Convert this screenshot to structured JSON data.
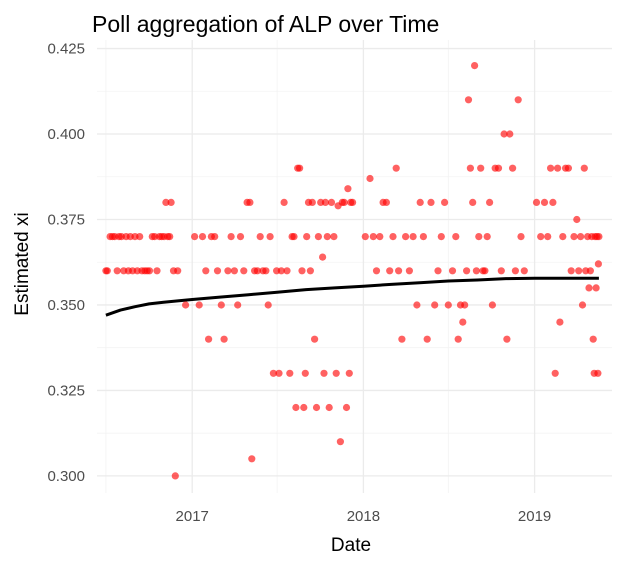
{
  "chart_data": {
    "type": "scatter",
    "title": "Poll aggregation of ALP over Time",
    "xlabel": "Date",
    "ylabel": "Estimated xi",
    "xlim": [
      "2016-06-12",
      "2019-06-15"
    ],
    "ylim": [
      0.295,
      0.4275
    ],
    "x_ticks": [
      {
        "label": "2017",
        "date": "2017-01-01"
      },
      {
        "label": "2018",
        "date": "2018-01-01"
      },
      {
        "label": "2019",
        "date": "2019-01-01"
      }
    ],
    "y_ticks": [
      0.3,
      0.325,
      0.35,
      0.375,
      0.4,
      0.425
    ],
    "y_tick_labels": [
      "0.300",
      "0.325",
      "0.350",
      "0.375",
      "0.400",
      "0.425"
    ],
    "grid": true,
    "point_color": "#ff0000",
    "line_color": "#000000",
    "series": [
      {
        "kind": "points",
        "points": [
          [
            "2016-07-01",
            0.36
          ],
          [
            "2016-07-04",
            0.36
          ],
          [
            "2016-07-10",
            0.37
          ],
          [
            "2016-07-15",
            0.37
          ],
          [
            "2016-07-20",
            0.37
          ],
          [
            "2016-07-25",
            0.36
          ],
          [
            "2016-07-29",
            0.37
          ],
          [
            "2016-08-03",
            0.37
          ],
          [
            "2016-08-08",
            0.36
          ],
          [
            "2016-08-13",
            0.37
          ],
          [
            "2016-08-18",
            0.36
          ],
          [
            "2016-08-22",
            0.37
          ],
          [
            "2016-08-27",
            0.36
          ],
          [
            "2016-09-01",
            0.37
          ],
          [
            "2016-09-06",
            0.36
          ],
          [
            "2016-09-11",
            0.37
          ],
          [
            "2016-09-16",
            0.36
          ],
          [
            "2016-09-22",
            0.36
          ],
          [
            "2016-09-27",
            0.36
          ],
          [
            "2016-10-02",
            0.36
          ],
          [
            "2016-10-08",
            0.37
          ],
          [
            "2016-10-13",
            0.37
          ],
          [
            "2016-10-18",
            0.36
          ],
          [
            "2016-10-23",
            0.37
          ],
          [
            "2016-10-28",
            0.37
          ],
          [
            "2016-11-02",
            0.37
          ],
          [
            "2016-11-06",
            0.38
          ],
          [
            "2016-11-10",
            0.37
          ],
          [
            "2016-11-14",
            0.37
          ],
          [
            "2016-11-17",
            0.38
          ],
          [
            "2016-11-22",
            0.36
          ],
          [
            "2016-11-26",
            0.3
          ],
          [
            "2016-12-01",
            0.36
          ],
          [
            "2016-12-18",
            0.35
          ],
          [
            "2017-01-06",
            0.37
          ],
          [
            "2017-01-16",
            0.35
          ],
          [
            "2017-01-23",
            0.37
          ],
          [
            "2017-01-30",
            0.36
          ],
          [
            "2017-02-05",
            0.34
          ],
          [
            "2017-02-11",
            0.37
          ],
          [
            "2017-02-18",
            0.37
          ],
          [
            "2017-02-24",
            0.36
          ],
          [
            "2017-03-04",
            0.35
          ],
          [
            "2017-03-10",
            0.34
          ],
          [
            "2017-03-18",
            0.36
          ],
          [
            "2017-03-25",
            0.37
          ],
          [
            "2017-04-01",
            0.36
          ],
          [
            "2017-04-08",
            0.35
          ],
          [
            "2017-04-14",
            0.37
          ],
          [
            "2017-04-21",
            0.36
          ],
          [
            "2017-04-28",
            0.38
          ],
          [
            "2017-05-04",
            0.38
          ],
          [
            "2017-05-08",
            0.305
          ],
          [
            "2017-05-14",
            0.36
          ],
          [
            "2017-05-20",
            0.36
          ],
          [
            "2017-05-26",
            0.37
          ],
          [
            "2017-06-01",
            0.36
          ],
          [
            "2017-06-07",
            0.36
          ],
          [
            "2017-06-12",
            0.35
          ],
          [
            "2017-06-16",
            0.37
          ],
          [
            "2017-06-23",
            0.33
          ],
          [
            "2017-06-30",
            0.36
          ],
          [
            "2017-07-05",
            0.33
          ],
          [
            "2017-07-10",
            0.36
          ],
          [
            "2017-07-16",
            0.38
          ],
          [
            "2017-07-22",
            0.36
          ],
          [
            "2017-07-28",
            0.33
          ],
          [
            "2017-08-02",
            0.37
          ],
          [
            "2017-08-06",
            0.37
          ],
          [
            "2017-08-10",
            0.32
          ],
          [
            "2017-08-14",
            0.39
          ],
          [
            "2017-08-18",
            0.39
          ],
          [
            "2017-08-23",
            0.36
          ],
          [
            "2017-08-27",
            0.32
          ],
          [
            "2017-08-30",
            0.33
          ],
          [
            "2017-09-02",
            0.37
          ],
          [
            "2017-09-06",
            0.38
          ],
          [
            "2017-09-10",
            0.36
          ],
          [
            "2017-09-14",
            0.38
          ],
          [
            "2017-09-19",
            0.34
          ],
          [
            "2017-09-23",
            0.32
          ],
          [
            "2017-09-27",
            0.37
          ],
          [
            "2017-10-02",
            0.38
          ],
          [
            "2017-10-06",
            0.364
          ],
          [
            "2017-10-09",
            0.33
          ],
          [
            "2017-10-12",
            0.38
          ],
          [
            "2017-10-16",
            0.37
          ],
          [
            "2017-10-20",
            0.32
          ],
          [
            "2017-10-25",
            0.38
          ],
          [
            "2017-10-30",
            0.37
          ],
          [
            "2017-11-04",
            0.33
          ],
          [
            "2017-11-08",
            0.379
          ],
          [
            "2017-11-13",
            0.31
          ],
          [
            "2017-11-17",
            0.38
          ],
          [
            "2017-11-21",
            0.38
          ],
          [
            "2017-11-26",
            0.32
          ],
          [
            "2017-11-29",
            0.384
          ],
          [
            "2017-12-02",
            0.33
          ],
          [
            "2017-12-05",
            0.38
          ],
          [
            "2017-12-09",
            0.38
          ],
          [
            "2018-01-05",
            0.37
          ],
          [
            "2018-01-15",
            0.387
          ],
          [
            "2018-01-22",
            0.37
          ],
          [
            "2018-01-29",
            0.36
          ],
          [
            "2018-02-05",
            0.37
          ],
          [
            "2018-02-12",
            0.38
          ],
          [
            "2018-02-19",
            0.38
          ],
          [
            "2018-02-26",
            0.36
          ],
          [
            "2018-03-05",
            0.37
          ],
          [
            "2018-03-12",
            0.39
          ],
          [
            "2018-03-17",
            0.36
          ],
          [
            "2018-03-24",
            0.34
          ],
          [
            "2018-04-01",
            0.37
          ],
          [
            "2018-04-09",
            0.36
          ],
          [
            "2018-04-17",
            0.37
          ],
          [
            "2018-04-25",
            0.35
          ],
          [
            "2018-05-02",
            0.38
          ],
          [
            "2018-05-09",
            0.37
          ],
          [
            "2018-05-17",
            0.34
          ],
          [
            "2018-05-25",
            0.38
          ],
          [
            "2018-06-02",
            0.35
          ],
          [
            "2018-06-09",
            0.36
          ],
          [
            "2018-06-16",
            0.37
          ],
          [
            "2018-06-23",
            0.38
          ],
          [
            "2018-07-01",
            0.35
          ],
          [
            "2018-07-10",
            0.36
          ],
          [
            "2018-07-17",
            0.37
          ],
          [
            "2018-07-22",
            0.34
          ],
          [
            "2018-07-27",
            0.35
          ],
          [
            "2018-08-01",
            0.345
          ],
          [
            "2018-08-05",
            0.35
          ],
          [
            "2018-08-09",
            0.36
          ],
          [
            "2018-08-13",
            0.41
          ],
          [
            "2018-08-17",
            0.39
          ],
          [
            "2018-08-22",
            0.38
          ],
          [
            "2018-08-26",
            0.42
          ],
          [
            "2018-08-30",
            0.36
          ],
          [
            "2018-09-04",
            0.37
          ],
          [
            "2018-09-08",
            0.39
          ],
          [
            "2018-09-13",
            0.36
          ],
          [
            "2018-09-17",
            0.36
          ],
          [
            "2018-09-22",
            0.37
          ],
          [
            "2018-09-27",
            0.38
          ],
          [
            "2018-10-03",
            0.35
          ],
          [
            "2018-10-09",
            0.39
          ],
          [
            "2018-10-16",
            0.39
          ],
          [
            "2018-10-22",
            0.36
          ],
          [
            "2018-10-28",
            0.4
          ],
          [
            "2018-11-03",
            0.34
          ],
          [
            "2018-11-09",
            0.4
          ],
          [
            "2018-11-15",
            0.39
          ],
          [
            "2018-11-21",
            0.36
          ],
          [
            "2018-11-27",
            0.41
          ],
          [
            "2018-12-03",
            0.37
          ],
          [
            "2018-12-10",
            0.36
          ],
          [
            "2019-01-05",
            0.38
          ],
          [
            "2019-01-14",
            0.37
          ],
          [
            "2019-01-22",
            0.38
          ],
          [
            "2019-01-29",
            0.37
          ],
          [
            "2019-02-04",
            0.39
          ],
          [
            "2019-02-09",
            0.38
          ],
          [
            "2019-02-14",
            0.33
          ],
          [
            "2019-02-19",
            0.39
          ],
          [
            "2019-02-24",
            0.345
          ],
          [
            "2019-03-02",
            0.37
          ],
          [
            "2019-03-08",
            0.39
          ],
          [
            "2019-03-14",
            0.39
          ],
          [
            "2019-03-20",
            0.36
          ],
          [
            "2019-03-26",
            0.37
          ],
          [
            "2019-04-01",
            0.375
          ],
          [
            "2019-04-05",
            0.36
          ],
          [
            "2019-04-09",
            0.37
          ],
          [
            "2019-04-13",
            0.35
          ],
          [
            "2019-04-17",
            0.39
          ],
          [
            "2019-04-20",
            0.36
          ],
          [
            "2019-04-24",
            0.37
          ],
          [
            "2019-04-27",
            0.355
          ],
          [
            "2019-04-30",
            0.36
          ],
          [
            "2019-05-03",
            0.37
          ],
          [
            "2019-05-06",
            0.34
          ],
          [
            "2019-05-08",
            0.33
          ],
          [
            "2019-05-10",
            0.37
          ],
          [
            "2019-05-12",
            0.355
          ],
          [
            "2019-05-14",
            0.37
          ],
          [
            "2019-05-16",
            0.33
          ],
          [
            "2019-05-17",
            0.362
          ],
          [
            "2019-05-18",
            0.37
          ]
        ]
      },
      {
        "kind": "line",
        "points": [
          [
            "2016-07-01",
            0.347
          ],
          [
            "2016-08-01",
            0.3485
          ],
          [
            "2016-09-01",
            0.3495
          ],
          [
            "2016-10-01",
            0.3503
          ],
          [
            "2016-11-01",
            0.3508
          ],
          [
            "2016-12-01",
            0.3512
          ],
          [
            "2017-01-01",
            0.3516
          ],
          [
            "2017-03-01",
            0.3523
          ],
          [
            "2017-05-01",
            0.353
          ],
          [
            "2017-07-01",
            0.3537
          ],
          [
            "2017-09-01",
            0.3545
          ],
          [
            "2017-11-01",
            0.355
          ],
          [
            "2018-01-01",
            0.3555
          ],
          [
            "2018-03-01",
            0.356
          ],
          [
            "2018-05-01",
            0.3565
          ],
          [
            "2018-07-01",
            0.357
          ],
          [
            "2018-09-01",
            0.3573
          ],
          [
            "2018-11-01",
            0.3577
          ],
          [
            "2019-01-01",
            0.3578
          ],
          [
            "2019-03-01",
            0.3578
          ],
          [
            "2019-05-18",
            0.3578
          ]
        ]
      }
    ]
  }
}
